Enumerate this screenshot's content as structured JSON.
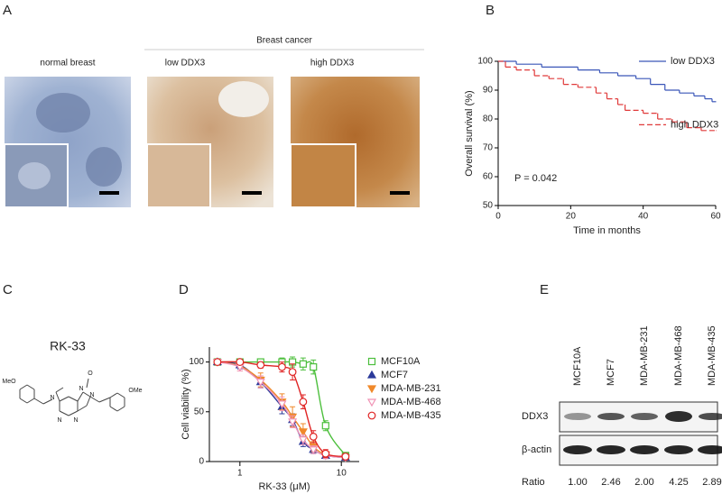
{
  "panel_letters": [
    "A",
    "B",
    "C",
    "D",
    "E"
  ],
  "panel_a": {
    "group_label": "Breast cancer",
    "labels": [
      "normal breast",
      "low DDX3",
      "high DDX3"
    ]
  },
  "panel_c": {
    "compound": "RK-33",
    "atom_labels": [
      "MeO",
      "N",
      "N",
      "N",
      "N",
      "N",
      "O",
      "OMe"
    ]
  },
  "panel_e": {
    "lanes": [
      "MCF10A",
      "MCF7",
      "MDA-MB-231",
      "MDA-MB-468",
      "MDA-MB-435"
    ],
    "rows": [
      "DDX3",
      "β-actin"
    ],
    "ratio_label": "Ratio",
    "ratios": [
      1.0,
      2.46,
      2.0,
      4.25,
      2.89
    ],
    "ratio_labels": [
      "1.00",
      "2.46",
      "2.00",
      "4.25",
      "2.89"
    ]
  },
  "chart_data": [
    {
      "type": "step",
      "x_label": "Time in months",
      "y_label": "Overall survival (%)",
      "annotation": "P = 0.042",
      "xlim": [
        0,
        60
      ],
      "xticks": [
        0,
        20,
        40,
        60
      ],
      "ylim": [
        50,
        100
      ],
      "yticks": [
        50,
        60,
        70,
        80,
        90,
        100
      ],
      "series": [
        {
          "name": "low DDX3",
          "color": "#3a56b8",
          "line_style": "solid",
          "x": [
            0,
            5,
            12,
            22,
            28,
            33,
            38,
            42,
            46,
            50,
            54,
            57,
            59,
            60
          ],
          "values": [
            100,
            99,
            98,
            97,
            96,
            95,
            94,
            92,
            90,
            89,
            88,
            87,
            86,
            86
          ]
        },
        {
          "name": "high DDX3",
          "color": "#e03a3a",
          "line_style": "dashed",
          "x": [
            0,
            2,
            5,
            10,
            14,
            18,
            22,
            27,
            30,
            33,
            35,
            40,
            44,
            48,
            52,
            56,
            60
          ],
          "values": [
            100,
            98,
            97,
            95,
            94,
            92,
            91,
            89,
            87,
            85,
            83,
            82,
            80,
            79,
            77,
            76,
            76
          ]
        }
      ]
    },
    {
      "type": "line",
      "x_label": "RK-33 (μM)",
      "y_label": "Cell viability (%)",
      "xscale": "log",
      "xlim": [
        0.5,
        15
      ],
      "xticks": [
        1,
        10
      ],
      "ylim": [
        0,
        115
      ],
      "yticks": [
        0,
        50,
        100
      ],
      "x": [
        0.6,
        1,
        1.6,
        2.6,
        3.3,
        4.2,
        5.3,
        7.0,
        11.0
      ],
      "series": [
        {
          "name": "MCF10A",
          "color": "#4cbf3c",
          "marker": "square",
          "filled": false,
          "values": [
            100,
            100,
            100,
            100,
            100,
            98,
            95,
            36,
            6
          ],
          "errors": [
            2,
            2,
            3,
            4,
            5,
            6,
            7,
            5,
            3
          ]
        },
        {
          "name": "MCF7",
          "color": "#2b3a9a",
          "marker": "triangle",
          "filled": true,
          "values": [
            100,
            97,
            80,
            55,
            42,
            20,
            12,
            6,
            4
          ],
          "errors": [
            2,
            4,
            6,
            7,
            6,
            5,
            4,
            3,
            2
          ]
        },
        {
          "name": "MDA-MB-231",
          "color": "#f0892a",
          "marker": "triangle-down",
          "filled": true,
          "values": [
            100,
            96,
            82,
            60,
            45,
            30,
            15,
            7,
            4
          ],
          "errors": [
            2,
            5,
            7,
            8,
            10,
            8,
            5,
            3,
            2
          ]
        },
        {
          "name": "MDA-MB-468",
          "color": "#f093b5",
          "marker": "triangle-down",
          "filled": false,
          "values": [
            100,
            95,
            80,
            58,
            40,
            22,
            12,
            6,
            4
          ],
          "errors": [
            2,
            4,
            6,
            7,
            6,
            5,
            4,
            3,
            2
          ]
        },
        {
          "name": "MDA-MB-435",
          "color": "#e02424",
          "marker": "circle",
          "filled": false,
          "values": [
            100,
            100,
            97,
            95,
            90,
            60,
            25,
            8,
            5
          ],
          "errors": [
            2,
            2,
            3,
            5,
            8,
            7,
            6,
            4,
            3
          ]
        }
      ]
    }
  ]
}
